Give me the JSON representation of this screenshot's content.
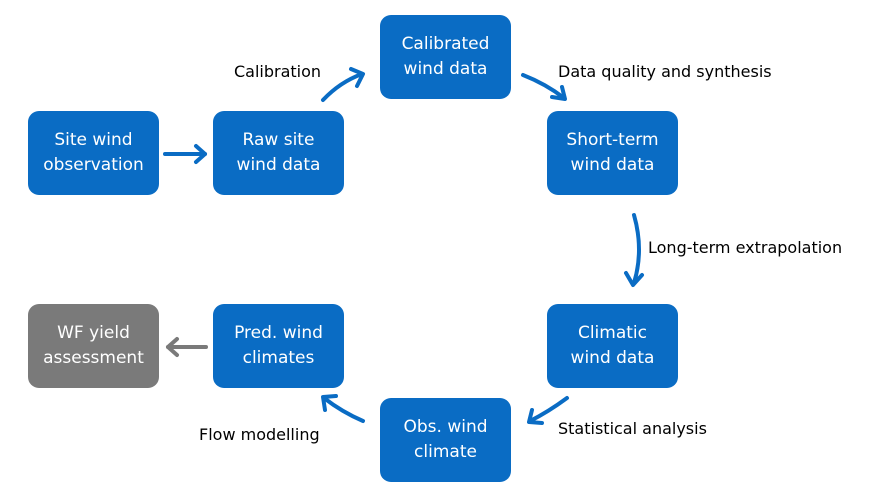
{
  "colors": {
    "node": "#0a6cc4",
    "node_gray": "#7a7a7a",
    "arrow": "#0a6cc4",
    "arrow_gray": "#7a7a7a"
  },
  "nodes": {
    "site_obs": "Site wind\nobservation",
    "raw_site": "Raw site\nwind data",
    "calibrated": "Calibrated\nwind data",
    "short_term": "Short-term\nwind data",
    "climatic": "Climatic\nwind data",
    "obs_climate": "Obs. wind\nclimate",
    "pred_climates": "Pred. wind\nclimates",
    "wf_yield": "WF yield\nassessment"
  },
  "edges": {
    "calibration": "Calibration",
    "data_quality": "Data quality and synthesis",
    "long_term": "Long-term extrapolation",
    "statistical": "Statistical analysis",
    "flow_modelling": "Flow modelling"
  }
}
